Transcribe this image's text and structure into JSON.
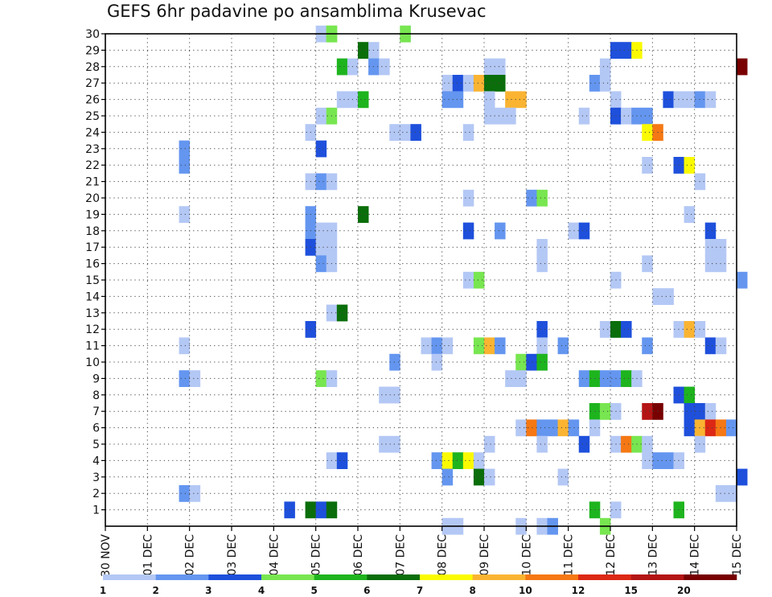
{
  "chart_data": {
    "type": "heatmap",
    "title": "GEFS 6hr padavine po ansamblima Krusevac",
    "xlabel": "",
    "ylabel": "",
    "x_ticks": [
      "30 NOV",
      "01 DEC",
      "02 DEC",
      "03 DEC",
      "04 DEC",
      "05 DEC",
      "06 DEC",
      "07 DEC",
      "08 DEC",
      "09 DEC",
      "10 DEC",
      "11 DEC",
      "12 DEC",
      "13 DEC",
      "14 DEC",
      "15 DEC"
    ],
    "y_ticks": [
      1,
      2,
      3,
      4,
      5,
      6,
      7,
      8,
      9,
      10,
      11,
      12,
      13,
      14,
      15,
      16,
      17,
      18,
      19,
      20,
      21,
      22,
      23,
      24,
      25,
      26,
      27,
      28,
      29,
      30
    ],
    "xlim_days": [
      0,
      15
    ],
    "ylim_members": [
      0,
      30
    ],
    "x_step_hours": 6,
    "grid": true,
    "legend_position": "bottom",
    "legend": {
      "levels": [
        "1",
        "2",
        "3",
        "4",
        "5",
        "6",
        "7",
        "8",
        "10",
        "12",
        "15",
        "20"
      ],
      "colors": [
        "#b4c8f5",
        "#6496f0",
        "#1e50dc",
        "#78e650",
        "#1eb41e",
        "#0a6e0a",
        "#fafa00",
        "#fab432",
        "#f57814",
        "#dc2814",
        "#b41414",
        "#780000"
      ]
    },
    "points": [
      [
        1,
        30,
        5.0,
        0
      ],
      [
        4,
        30,
        5.25,
        1
      ],
      [
        1,
        30,
        7.0,
        2
      ],
      [
        4,
        30,
        5.25,
        3
      ],
      [
        4,
        30,
        7.0,
        4
      ],
      [
        6,
        29,
        6.0,
        0
      ],
      [
        1,
        29,
        6.25,
        1
      ],
      [
        3,
        29,
        12.0,
        2
      ],
      [
        3,
        29,
        12.25,
        3
      ],
      [
        7,
        29,
        12.5,
        4
      ],
      [
        5,
        28,
        5.5,
        0
      ],
      [
        1,
        28,
        5.75,
        1
      ],
      [
        2,
        28,
        6.25,
        2
      ],
      [
        1,
        28,
        6.5,
        3
      ],
      [
        1,
        28,
        9.0,
        4
      ],
      [
        1,
        28,
        9.25,
        0
      ],
      [
        1,
        28,
        11.75,
        1
      ],
      [
        12,
        28,
        15.0,
        2
      ],
      [
        1,
        27,
        8.0,
        0
      ],
      [
        3,
        27,
        8.25,
        1
      ],
      [
        1,
        27,
        8.5,
        2
      ],
      [
        8,
        27,
        8.75,
        3
      ],
      [
        6,
        27,
        9.0,
        4
      ],
      [
        6,
        27,
        9.25,
        0
      ],
      [
        2,
        27,
        11.5,
        1
      ],
      [
        1,
        27,
        11.75,
        2
      ],
      [
        1,
        26,
        5.5,
        0
      ],
      [
        1,
        26,
        5.75,
        1
      ],
      [
        5,
        26,
        6.0,
        2
      ],
      [
        2,
        26,
        8.0,
        3
      ],
      [
        2,
        26,
        8.25,
        4
      ],
      [
        1,
        26,
        9.0,
        0
      ],
      [
        8,
        26,
        9.5,
        1
      ],
      [
        8,
        26,
        9.75,
        2
      ],
      [
        1,
        26,
        12.0,
        3
      ],
      [
        3,
        26,
        13.25,
        4
      ],
      [
        1,
        26,
        13.5,
        0
      ],
      [
        1,
        26,
        13.75,
        1
      ],
      [
        2,
        26,
        14.0,
        2
      ],
      [
        1,
        26,
        14.25,
        3
      ],
      [
        1,
        25,
        5.0,
        0
      ],
      [
        4,
        25,
        5.25,
        1
      ],
      [
        1,
        25,
        9.0,
        2
      ],
      [
        1,
        25,
        9.25,
        3
      ],
      [
        1,
        25,
        9.5,
        4
      ],
      [
        1,
        25,
        11.25,
        0
      ],
      [
        3,
        25,
        12.0,
        1
      ],
      [
        1,
        25,
        12.25,
        2
      ],
      [
        2,
        25,
        12.5,
        3
      ],
      [
        2,
        25,
        12.75,
        4
      ],
      [
        1,
        24,
        4.75,
        0
      ],
      [
        1,
        24,
        6.75,
        1
      ],
      [
        1,
        24,
        7.0,
        2
      ],
      [
        3,
        24,
        7.25,
        3
      ],
      [
        1,
        24,
        8.5,
        4
      ],
      [
        7,
        24,
        12.75,
        0
      ],
      [
        9,
        24,
        13.0,
        1
      ],
      [
        2,
        23,
        1.75,
        0
      ],
      [
        3,
        23,
        5.0,
        1
      ],
      [
        2,
        22,
        1.75,
        0
      ],
      [
        1,
        22,
        12.75,
        1
      ],
      [
        3,
        22,
        13.5,
        2
      ],
      [
        7,
        22,
        13.75,
        3
      ],
      [
        1,
        21,
        4.75,
        0
      ],
      [
        2,
        21,
        5.0,
        1
      ],
      [
        1,
        21,
        5.25,
        2
      ],
      [
        1,
        21,
        14.0,
        3
      ],
      [
        1,
        20,
        8.5,
        0
      ],
      [
        2,
        20,
        10.0,
        1
      ],
      [
        4,
        20,
        10.25,
        2
      ],
      [
        1,
        19,
        1.75,
        0
      ],
      [
        2,
        19,
        4.75,
        1
      ],
      [
        6,
        19,
        6.0,
        2
      ],
      [
        1,
        19,
        13.75,
        3
      ],
      [
        2,
        18,
        4.75,
        0
      ],
      [
        1,
        18,
        5.0,
        1
      ],
      [
        1,
        18,
        5.25,
        2
      ],
      [
        3,
        18,
        8.5,
        3
      ],
      [
        2,
        18,
        9.25,
        4
      ],
      [
        1,
        18,
        11.0,
        0
      ],
      [
        3,
        18,
        11.25,
        1
      ],
      [
        3,
        18,
        14.25,
        2
      ],
      [
        3,
        17,
        4.75,
        0
      ],
      [
        1,
        17,
        5.0,
        1
      ],
      [
        1,
        17,
        5.25,
        2
      ],
      [
        1,
        17,
        10.25,
        3
      ],
      [
        1,
        17,
        14.25,
        4
      ],
      [
        1,
        17,
        14.5,
        0
      ],
      [
        2,
        16,
        5.0,
        0
      ],
      [
        1,
        16,
        5.25,
        1
      ],
      [
        1,
        16,
        10.25,
        2
      ],
      [
        1,
        16,
        12.75,
        3
      ],
      [
        1,
        16,
        14.25,
        4
      ],
      [
        1,
        16,
        14.5,
        0
      ],
      [
        1,
        15,
        8.5,
        0
      ],
      [
        4,
        15,
        8.75,
        1
      ],
      [
        1,
        15,
        12.0,
        2
      ],
      [
        2,
        15,
        15.0,
        3
      ],
      [
        1,
        14,
        13.0,
        0
      ],
      [
        1,
        14,
        13.25,
        1
      ],
      [
        1,
        13,
        5.25,
        0
      ],
      [
        6,
        13,
        5.5,
        1
      ],
      [
        3,
        12,
        4.75,
        0
      ],
      [
        3,
        12,
        10.25,
        1
      ],
      [
        1,
        12,
        11.75,
        2
      ],
      [
        6,
        12,
        12.0,
        3
      ],
      [
        3,
        12,
        12.25,
        4
      ],
      [
        1,
        12,
        13.5,
        0
      ],
      [
        8,
        12,
        13.75,
        1
      ],
      [
        1,
        12,
        14.0,
        2
      ],
      [
        1,
        11,
        1.75,
        0
      ],
      [
        1,
        11,
        7.5,
        1
      ],
      [
        2,
        11,
        7.75,
        2
      ],
      [
        1,
        11,
        8.0,
        3
      ],
      [
        4,
        11,
        8.75,
        4
      ],
      [
        8,
        11,
        9.0,
        0
      ],
      [
        2,
        11,
        9.25,
        1
      ],
      [
        1,
        11,
        10.25,
        2
      ],
      [
        2,
        11,
        10.75,
        3
      ],
      [
        2,
        11,
        12.75,
        4
      ],
      [
        3,
        11,
        14.25,
        0
      ],
      [
        1,
        11,
        14.5,
        1
      ],
      [
        2,
        10,
        6.75,
        0
      ],
      [
        1,
        10,
        7.75,
        1
      ],
      [
        4,
        10,
        9.75,
        2
      ],
      [
        3,
        10,
        10.0,
        3
      ],
      [
        5,
        10,
        10.25,
        4
      ],
      [
        2,
        9,
        1.75,
        0
      ],
      [
        1,
        9,
        2.0,
        1
      ],
      [
        4,
        9,
        5.0,
        2
      ],
      [
        1,
        9,
        5.25,
        3
      ],
      [
        1,
        9,
        9.5,
        4
      ],
      [
        1,
        9,
        9.75,
        0
      ],
      [
        2,
        9,
        11.25,
        1
      ],
      [
        5,
        9,
        11.5,
        2
      ],
      [
        2,
        9,
        11.75,
        3
      ],
      [
        2,
        9,
        12.0,
        4
      ],
      [
        5,
        9,
        12.25,
        0
      ],
      [
        1,
        9,
        12.5,
        1
      ],
      [
        1,
        8,
        6.5,
        0
      ],
      [
        1,
        8,
        6.75,
        1
      ],
      [
        3,
        8,
        13.5,
        2
      ],
      [
        5,
        8,
        13.75,
        3
      ],
      [
        5,
        7,
        11.5,
        0
      ],
      [
        4,
        7,
        11.75,
        1
      ],
      [
        1,
        7,
        12.0,
        2
      ],
      [
        11,
        7,
        12.75,
        3
      ],
      [
        12,
        7,
        13.0,
        4
      ],
      [
        3,
        7,
        13.75,
        0
      ],
      [
        3,
        7,
        14.0,
        1
      ],
      [
        1,
        7,
        14.25,
        2
      ],
      [
        1,
        6,
        9.75,
        0
      ],
      [
        9,
        6,
        10.0,
        1
      ],
      [
        2,
        6,
        10.25,
        2
      ],
      [
        2,
        6,
        10.5,
        3
      ],
      [
        8,
        6,
        10.75,
        4
      ],
      [
        2,
        6,
        11.0,
        0
      ],
      [
        1,
        6,
        11.5,
        1
      ],
      [
        3,
        6,
        13.75,
        2
      ],
      [
        8,
        6,
        14.0,
        3
      ],
      [
        10,
        6,
        14.25,
        4
      ],
      [
        9,
        6,
        14.5,
        0
      ],
      [
        2,
        6,
        14.75,
        1
      ],
      [
        1,
        5,
        6.5,
        0
      ],
      [
        1,
        5,
        6.75,
        1
      ],
      [
        1,
        5,
        9.0,
        2
      ],
      [
        1,
        5,
        10.25,
        3
      ],
      [
        3,
        5,
        11.25,
        4
      ],
      [
        1,
        5,
        12.0,
        0
      ],
      [
        9,
        5,
        12.25,
        1
      ],
      [
        4,
        5,
        12.5,
        2
      ],
      [
        1,
        5,
        12.75,
        3
      ],
      [
        1,
        5,
        14.0,
        4
      ],
      [
        1,
        4,
        5.25,
        0
      ],
      [
        3,
        4,
        5.5,
        1
      ],
      [
        2,
        4,
        7.75,
        2
      ],
      [
        7,
        4,
        8.0,
        3
      ],
      [
        5,
        4,
        8.25,
        4
      ],
      [
        7,
        4,
        8.5,
        0
      ],
      [
        1,
        4,
        8.75,
        1
      ],
      [
        1,
        4,
        12.75,
        2
      ],
      [
        2,
        4,
        13.0,
        3
      ],
      [
        2,
        4,
        13.25,
        4
      ],
      [
        1,
        4,
        13.5,
        0
      ],
      [
        2,
        3,
        8.0,
        0
      ],
      [
        6,
        3,
        8.75,
        1
      ],
      [
        1,
        3,
        9.0,
        2
      ],
      [
        1,
        3,
        10.75,
        3
      ],
      [
        3,
        3,
        15.0,
        4
      ],
      [
        2,
        2,
        1.75,
        0
      ],
      [
        1,
        2,
        2.0,
        1
      ],
      [
        1,
        2,
        14.5,
        2
      ],
      [
        1,
        2,
        14.75,
        3
      ],
      [
        3,
        1,
        4.25,
        0
      ],
      [
        6,
        1,
        4.75,
        1
      ],
      [
        3,
        1,
        5.0,
        2
      ],
      [
        6,
        1,
        5.25,
        3
      ],
      [
        5,
        1,
        11.5,
        4
      ],
      [
        1,
        1,
        12.0,
        0
      ],
      [
        5,
        1,
        13.5,
        1
      ],
      [
        1,
        0,
        8.0,
        0
      ],
      [
        1,
        0,
        8.25,
        1
      ],
      [
        1,
        0,
        9.75,
        2
      ],
      [
        1,
        0,
        10.25,
        3
      ],
      [
        2,
        0,
        10.5,
        4
      ],
      [
        4,
        0,
        11.75,
        0
      ]
    ]
  }
}
